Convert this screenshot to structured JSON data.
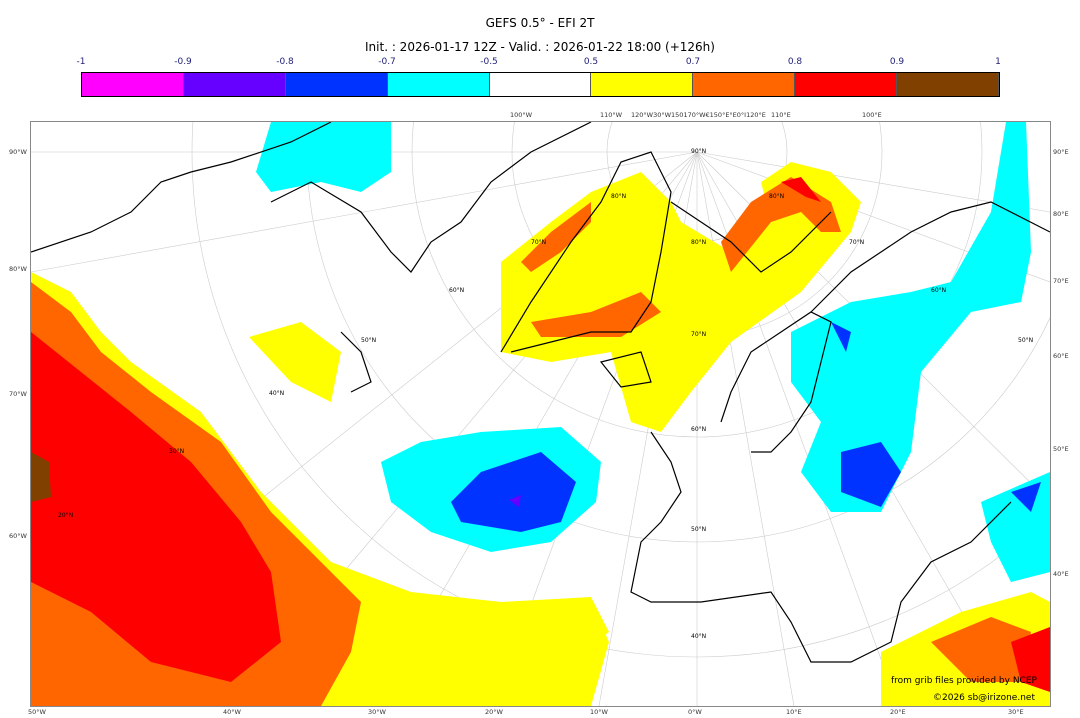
{
  "header": {
    "title": "GEFS 0.5° - EFI 2T",
    "subtitle": "Init. : 2026-01-17 12Z - Valid. : 2026-01-22 18:00 (+126h)"
  },
  "colorbar": {
    "ticks": [
      "-1",
      "-0.9",
      "-0.8",
      "-0.7",
      "-0.5",
      "0.5",
      "0.7",
      "0.8",
      "0.9",
      "1"
    ],
    "colors": [
      "#ff00ff",
      "#6600ff",
      "#0033ff",
      "#00ffff",
      "#ffffff",
      "#ffff00",
      "#ff6600",
      "#ff0000",
      "#804000"
    ]
  },
  "axes": {
    "left": [
      "90°W",
      "80°W",
      "70°W",
      "60°W"
    ],
    "bottom": [
      "50°W",
      "40°W",
      "30°W",
      "20°W",
      "10°W",
      "0°W",
      "10°E",
      "20°E",
      "30°E"
    ],
    "right": [
      "90°E",
      "80°E",
      "70°E",
      "60°E",
      "50°E",
      "40°E"
    ],
    "top": [
      "100°W",
      "110°W",
      "120°W30°W150170°W€150°E°E0°I120°E",
      "110°E",
      "100°E"
    ],
    "lat_labels": [
      "90°N",
      "80°N",
      "70°N",
      "60°N",
      "50°N",
      "40°N",
      "80°N",
      "70°N",
      "60°N",
      "50°N",
      "80°N",
      "70°N",
      "60°N",
      "50°N",
      "40°N",
      "30°N",
      "20°N"
    ]
  },
  "credits": {
    "source": "from grib files provided by NCEP",
    "copyright": "©2026 sb@irizone.net"
  }
}
